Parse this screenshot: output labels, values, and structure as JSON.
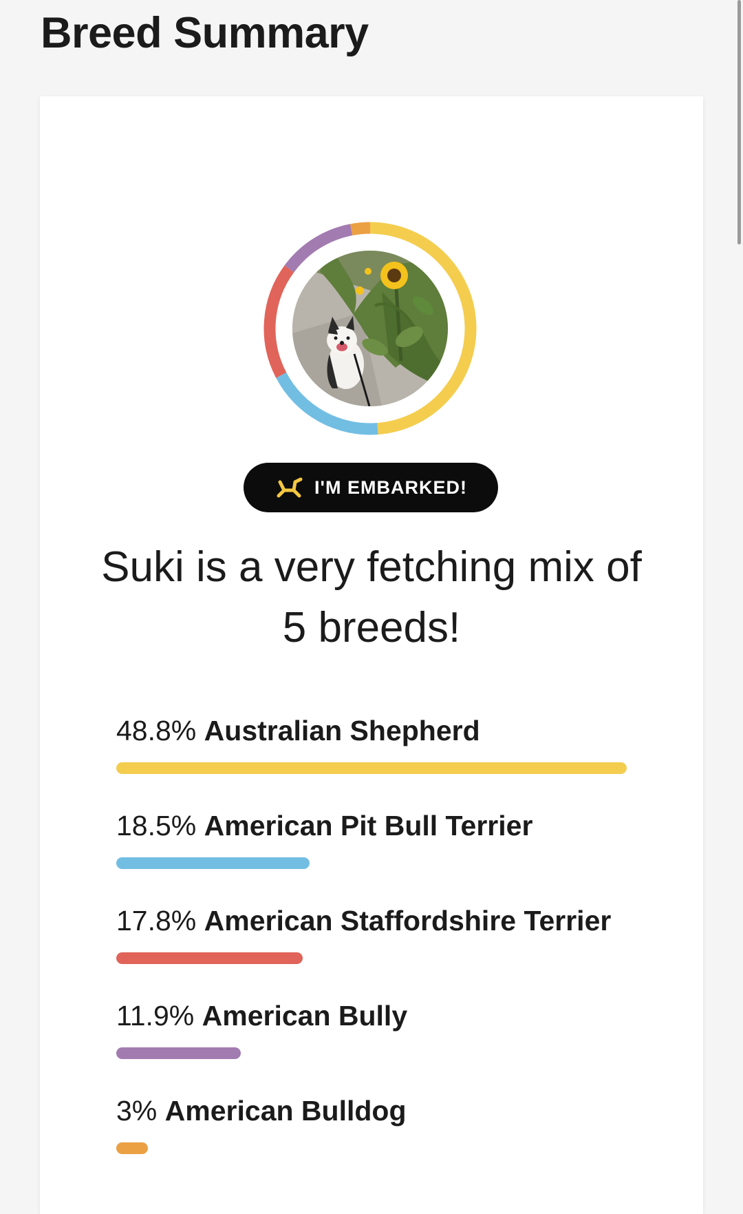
{
  "page": {
    "title": "Breed Summary"
  },
  "badge": {
    "label": "I'M EMBARKED!",
    "icon": "balloon-dog-icon",
    "icon_color": "#f5c842"
  },
  "headline": "Suki is a very fetching mix of 5 breeds!",
  "photo": {
    "subject": "dog-with-sunflowers-photo"
  },
  "breeds": [
    {
      "percent_label": "48.8%",
      "name": "Australian Shepherd",
      "value": 48.8,
      "color": "#f4cd4f"
    },
    {
      "percent_label": "18.5%",
      "name": "American Pit Bull Terrier",
      "value": 18.5,
      "color": "#72bee3"
    },
    {
      "percent_label": "17.8%",
      "name": "American Staffordshire Terrier",
      "value": 17.8,
      "color": "#e0645a"
    },
    {
      "percent_label": "11.9%",
      "name": "American Bully",
      "value": 11.9,
      "color": "#a27bb1"
    },
    {
      "percent_label": "3%",
      "name": "American Bulldog",
      "value": 3,
      "color": "#eba044"
    }
  ]
}
